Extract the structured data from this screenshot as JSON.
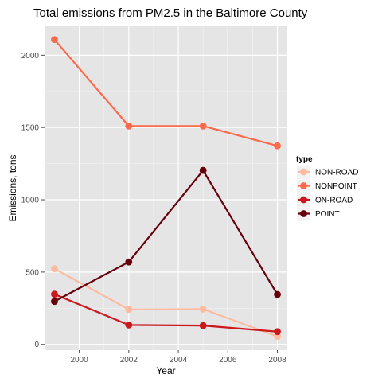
{
  "chart_data": {
    "type": "line",
    "title": "Total emissions from PM2.5 in the Baltimore County",
    "xlabel": "Year",
    "ylabel": "Emissions, tons",
    "x": [
      1999,
      2002,
      2005,
      2008
    ],
    "xlim": [
      1998.6,
      2008.4
    ],
    "ylim": [
      -40,
      2200
    ],
    "xticks": [
      2000,
      2002,
      2004,
      2006,
      2008
    ],
    "yticks": [
      0,
      500,
      1000,
      1500,
      2000
    ],
    "grid": true,
    "legend": {
      "title": "type",
      "position": "right"
    },
    "series": [
      {
        "name": "NON-ROAD",
        "color": "#FCBBA1",
        "values": [
          523,
          242,
          244,
          55
        ]
      },
      {
        "name": "NONPOINT",
        "color": "#FB6A4A",
        "values": [
          2108,
          1510,
          1510,
          1373
        ]
      },
      {
        "name": "ON-ROAD",
        "color": "#CB181D",
        "values": [
          347,
          134,
          130,
          88
        ]
      },
      {
        "name": "POINT",
        "color": "#67000D",
        "values": [
          297,
          570,
          1203,
          345
        ]
      }
    ]
  }
}
